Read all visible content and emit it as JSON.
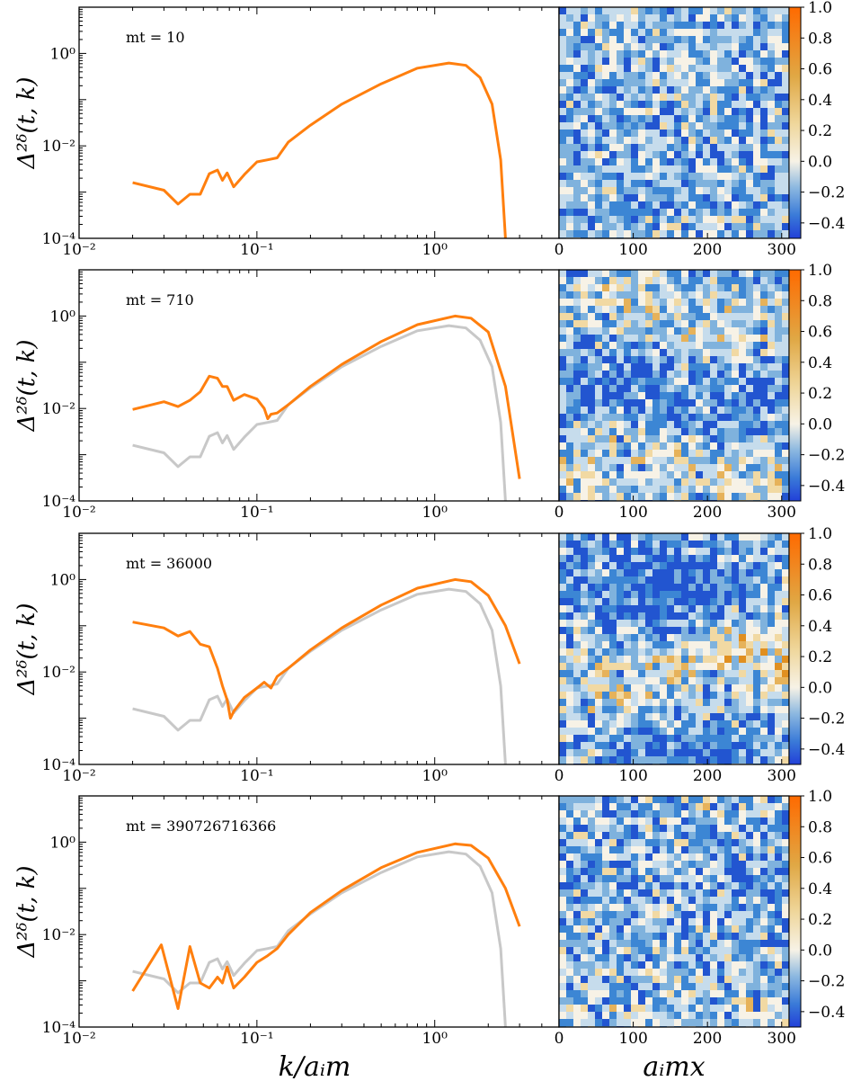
{
  "figure": {
    "xlabel_left": "k/aᵢm",
    "xlabel_right": "aᵢmx",
    "ylabel": "Δ²ᵟ(t, k)"
  },
  "colors": {
    "spectrum": "#ff7f0e",
    "reference": "#c8c8c8",
    "map_positive": "#f07000",
    "map_neutral": "#f7f2e6",
    "map_negative": "#2255d0"
  },
  "chart_data": [
    {
      "type": "line",
      "panel_label": "mt = 10",
      "xscale": "log",
      "yscale": "log",
      "xlim": [
        0.01,
        5.0
      ],
      "ylim": [
        0.0001,
        10
      ],
      "x_ticks": [
        "10⁻²",
        "10⁻¹",
        "10⁰"
      ],
      "y_ticks": [
        "10⁻⁴",
        "10⁻²",
        "10⁰"
      ],
      "series": [
        {
          "style": "orange",
          "x": [
            0.02,
            0.03,
            0.036,
            0.042,
            0.048,
            0.054,
            0.06,
            0.064,
            0.068,
            0.074,
            0.085,
            0.1,
            0.115,
            0.13,
            0.15,
            0.2,
            0.3,
            0.5,
            0.8,
            1.2,
            1.5,
            1.8,
            2.1,
            2.35,
            2.5
          ],
          "y": [
            0.0016,
            0.0011,
            0.00055,
            0.0009,
            0.0009,
            0.0025,
            0.003,
            0.0018,
            0.0026,
            0.0013,
            0.0024,
            0.0045,
            0.005,
            0.0055,
            0.012,
            0.028,
            0.08,
            0.22,
            0.48,
            0.62,
            0.55,
            0.3,
            0.08,
            0.005,
            0.0001
          ]
        }
      ]
    },
    {
      "type": "line",
      "panel_label": "mt = 710",
      "xscale": "log",
      "yscale": "log",
      "xlim": [
        0.01,
        5.0
      ],
      "ylim": [
        0.0001,
        10
      ],
      "x_ticks": [
        "10⁻²",
        "10⁻¹",
        "10⁰"
      ],
      "y_ticks": [
        "10⁻⁴",
        "10⁻²",
        "10⁰"
      ],
      "series": [
        {
          "style": "gray",
          "x": [
            0.02,
            0.03,
            0.036,
            0.042,
            0.048,
            0.054,
            0.06,
            0.064,
            0.068,
            0.074,
            0.085,
            0.1,
            0.115,
            0.13,
            0.15,
            0.2,
            0.3,
            0.5,
            0.8,
            1.2,
            1.5,
            1.8,
            2.1,
            2.35,
            2.5
          ],
          "y": [
            0.0016,
            0.0011,
            0.00055,
            0.0009,
            0.0009,
            0.0025,
            0.003,
            0.0018,
            0.0026,
            0.0013,
            0.0024,
            0.0045,
            0.005,
            0.0055,
            0.012,
            0.028,
            0.08,
            0.22,
            0.48,
            0.62,
            0.55,
            0.3,
            0.08,
            0.005,
            0.0001
          ]
        },
        {
          "style": "orange",
          "x": [
            0.02,
            0.03,
            0.036,
            0.042,
            0.048,
            0.054,
            0.06,
            0.064,
            0.068,
            0.074,
            0.085,
            0.1,
            0.11,
            0.115,
            0.12,
            0.13,
            0.15,
            0.2,
            0.3,
            0.5,
            0.8,
            1.3,
            1.6,
            2.0,
            2.5,
            3.0
          ],
          "y": [
            0.0095,
            0.014,
            0.011,
            0.015,
            0.023,
            0.05,
            0.045,
            0.03,
            0.03,
            0.015,
            0.02,
            0.016,
            0.01,
            0.006,
            0.0075,
            0.008,
            0.012,
            0.03,
            0.09,
            0.28,
            0.65,
            1.0,
            0.9,
            0.45,
            0.03,
            0.0003
          ]
        }
      ]
    },
    {
      "type": "line",
      "panel_label": "mt = 36000",
      "xscale": "log",
      "yscale": "log",
      "xlim": [
        0.01,
        5.0
      ],
      "ylim": [
        0.0001,
        10
      ],
      "x_ticks": [
        "10⁻²",
        "10⁻¹",
        "10⁰"
      ],
      "y_ticks": [
        "10⁻⁴",
        "10⁻²",
        "10⁰"
      ],
      "series": [
        {
          "style": "gray",
          "x": [
            0.02,
            0.03,
            0.036,
            0.042,
            0.048,
            0.054,
            0.06,
            0.064,
            0.068,
            0.074,
            0.085,
            0.1,
            0.115,
            0.13,
            0.15,
            0.2,
            0.3,
            0.5,
            0.8,
            1.2,
            1.5,
            1.8,
            2.1,
            2.35,
            2.5
          ],
          "y": [
            0.0016,
            0.0011,
            0.00055,
            0.0009,
            0.0009,
            0.0025,
            0.003,
            0.0018,
            0.0026,
            0.0013,
            0.0024,
            0.0045,
            0.005,
            0.0055,
            0.012,
            0.028,
            0.08,
            0.22,
            0.48,
            0.62,
            0.55,
            0.3,
            0.08,
            0.005,
            0.0001
          ]
        },
        {
          "style": "orange",
          "x": [
            0.02,
            0.03,
            0.036,
            0.042,
            0.048,
            0.054,
            0.06,
            0.064,
            0.068,
            0.071,
            0.074,
            0.085,
            0.1,
            0.11,
            0.12,
            0.13,
            0.15,
            0.2,
            0.3,
            0.5,
            0.8,
            1.3,
            1.6,
            2.0,
            2.5,
            3.0
          ],
          "y": [
            0.12,
            0.09,
            0.06,
            0.075,
            0.04,
            0.035,
            0.012,
            0.005,
            0.0025,
            0.001,
            0.0014,
            0.0028,
            0.0045,
            0.006,
            0.0045,
            0.008,
            0.012,
            0.03,
            0.09,
            0.28,
            0.65,
            1.0,
            0.9,
            0.45,
            0.1,
            0.015
          ]
        }
      ]
    },
    {
      "type": "line",
      "panel_label": "mt = 390726716366",
      "xscale": "log",
      "yscale": "log",
      "xlim": [
        0.01,
        5.0
      ],
      "ylim": [
        0.0001,
        10
      ],
      "x_ticks": [
        "10⁻²",
        "10⁻¹",
        "10⁰"
      ],
      "y_ticks": [
        "10⁻⁴",
        "10⁻²",
        "10⁰"
      ],
      "series": [
        {
          "style": "gray",
          "x": [
            0.02,
            0.03,
            0.036,
            0.042,
            0.048,
            0.054,
            0.06,
            0.064,
            0.068,
            0.074,
            0.085,
            0.1,
            0.115,
            0.13,
            0.15,
            0.2,
            0.3,
            0.5,
            0.8,
            1.2,
            1.5,
            1.8,
            2.1,
            2.35,
            2.5
          ],
          "y": [
            0.0016,
            0.0011,
            0.00055,
            0.0009,
            0.0009,
            0.0025,
            0.003,
            0.0018,
            0.0026,
            0.0013,
            0.0024,
            0.0045,
            0.005,
            0.0055,
            0.012,
            0.028,
            0.08,
            0.22,
            0.48,
            0.62,
            0.55,
            0.3,
            0.08,
            0.005,
            0.0001
          ]
        },
        {
          "style": "orange",
          "x": [
            0.02,
            0.029,
            0.036,
            0.042,
            0.048,
            0.054,
            0.06,
            0.064,
            0.068,
            0.074,
            0.085,
            0.1,
            0.115,
            0.13,
            0.15,
            0.2,
            0.3,
            0.5,
            0.8,
            1.3,
            1.6,
            2.0,
            2.5,
            3.0
          ],
          "y": [
            0.0006,
            0.006,
            0.00025,
            0.0055,
            0.0009,
            0.0007,
            0.0012,
            0.0009,
            0.002,
            0.0007,
            0.0012,
            0.0025,
            0.0035,
            0.005,
            0.01,
            0.03,
            0.09,
            0.28,
            0.6,
            0.92,
            0.85,
            0.45,
            0.1,
            0.015
          ]
        }
      ]
    },
    {
      "type": "heatmap",
      "panels": 4,
      "x_ticks": [
        "0",
        "100",
        "200",
        "300"
      ],
      "xlim": [
        0,
        310
      ],
      "ylim": [
        0,
        310
      ],
      "colorbar_ticks": [
        "1.0",
        "0.8",
        "0.6",
        "0.4",
        "0.2",
        "0.0",
        "−0.2",
        "−0.4"
      ],
      "colorbar_range": [
        -0.5,
        1.0
      ],
      "colormap": [
        "#2255d0",
        "#3c86d4",
        "#7fb2dd",
        "#c6dcec",
        "#f7f2e6",
        "#f1d9a3",
        "#e6b25a",
        "#e08f20",
        "#f07000"
      ]
    }
  ]
}
